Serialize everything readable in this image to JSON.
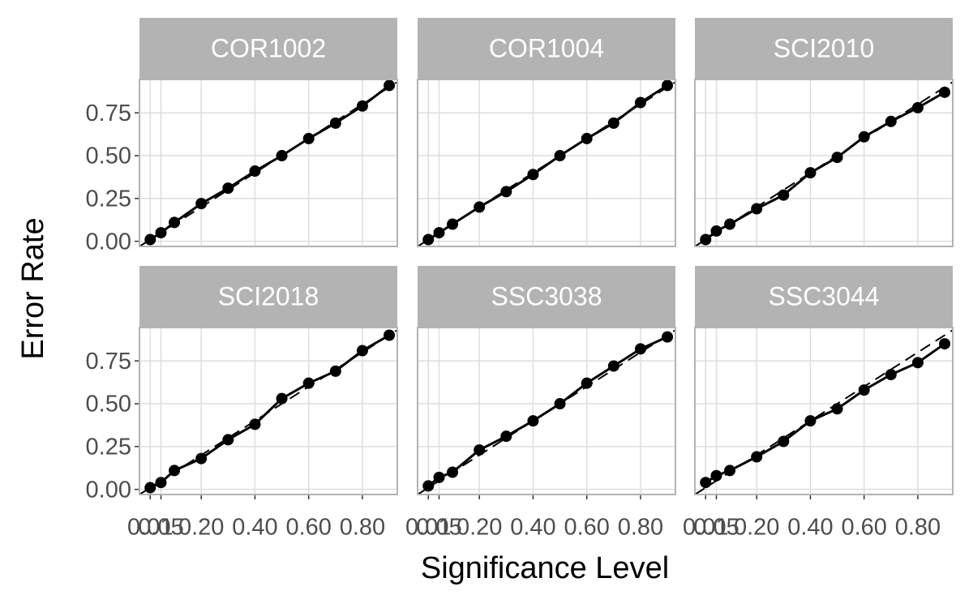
{
  "chart_data": {
    "type": "line",
    "x_label": "Significance Level",
    "y_label": "Error Rate",
    "x": [
      0.01,
      0.05,
      0.1,
      0.2,
      0.3,
      0.4,
      0.5,
      0.6,
      0.7,
      0.8,
      0.9
    ],
    "xlim": [
      -0.03,
      0.93
    ],
    "ylim": [
      -0.03,
      0.945
    ],
    "xticks": [
      {
        "value": 0.01,
        "label": "0.01"
      },
      0.05,
      {
        "value": 0.2,
        "label": "0.20"
      },
      {
        "value": 0.4,
        "label": "0.40"
      },
      {
        "value": 0.6,
        "label": "0.60"
      },
      {
        "value": 0.8,
        "label": "0.80"
      }
    ],
    "yticks": [
      {
        "value": 0,
        "label": "0.00"
      },
      0.25,
      {
        "value": 0.5,
        "label": "0.50"
      },
      0.75
    ],
    "grid": true,
    "color": "#000000",
    "facets": [
      {
        "title": "COR1002",
        "values": [
          0.01,
          0.05,
          0.11,
          0.22,
          0.31,
          0.41,
          0.5,
          0.6,
          0.69,
          0.79,
          0.91
        ]
      },
      {
        "title": "COR1004",
        "values": [
          0.01,
          0.05,
          0.1,
          0.2,
          0.29,
          0.39,
          0.5,
          0.6,
          0.69,
          0.81,
          0.91
        ]
      },
      {
        "title": "SCI2010",
        "values": [
          0.01,
          0.06,
          0.1,
          0.19,
          0.27,
          0.4,
          0.49,
          0.61,
          0.7,
          0.78,
          0.87
        ]
      },
      {
        "title": "SCI2018",
        "values": [
          0.01,
          0.04,
          0.11,
          0.18,
          0.29,
          0.38,
          0.53,
          0.62,
          0.69,
          0.81,
          0.9
        ]
      },
      {
        "title": "SSC3038",
        "values": [
          0.02,
          0.07,
          0.1,
          0.23,
          0.31,
          0.4,
          0.5,
          0.62,
          0.72,
          0.82,
          0.89
        ]
      },
      {
        "title": "SSC3044",
        "values": [
          0.04,
          0.08,
          0.11,
          0.19,
          0.28,
          0.4,
          0.47,
          0.58,
          0.67,
          0.74,
          0.85
        ]
      }
    ]
  }
}
